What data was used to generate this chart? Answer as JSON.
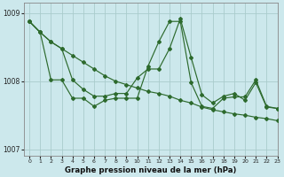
{
  "title": "Graphe pression niveau de la mer (hPa)",
  "background_color": "#cce8ec",
  "grid_color": "#aacccc",
  "line_color": "#2d6a2d",
  "xlim": [
    -0.5,
    23
  ],
  "ylim": [
    1006.9,
    1009.15
  ],
  "yticks": [
    1007,
    1008,
    1009
  ],
  "xticks": [
    0,
    1,
    2,
    3,
    4,
    5,
    6,
    7,
    8,
    9,
    10,
    11,
    12,
    13,
    14,
    15,
    16,
    17,
    18,
    19,
    20,
    21,
    22,
    23
  ],
  "series": [
    [
      1008.88,
      1008.72,
      1008.58,
      1008.48,
      1008.38,
      1008.28,
      1008.18,
      1008.08,
      1008.0,
      1007.95,
      1007.9,
      1007.85,
      1007.82,
      1007.78,
      1007.72,
      1007.68,
      1007.62,
      1007.58,
      1007.55,
      1007.52,
      1007.5,
      1007.47,
      1007.45,
      1007.42
    ],
    [
      1008.88,
      1008.72,
      1008.58,
      1008.48,
      1008.02,
      1007.88,
      1007.78,
      1007.78,
      1007.82,
      1007.82,
      1008.05,
      1008.18,
      1008.18,
      1008.48,
      1008.92,
      1008.35,
      1007.8,
      1007.68,
      1007.78,
      1007.82,
      1007.72,
      1007.98,
      1007.62,
      1007.6
    ],
    [
      1008.88,
      1008.72,
      1008.02,
      1008.02,
      1007.75,
      1007.75,
      1007.63,
      1007.72,
      1007.75,
      1007.75,
      1007.75,
      1008.22,
      1008.58,
      1008.88,
      1008.88,
      1007.98,
      1007.63,
      1007.6,
      1007.75,
      1007.77,
      1007.77,
      1008.02,
      1007.63,
      1007.6
    ]
  ]
}
